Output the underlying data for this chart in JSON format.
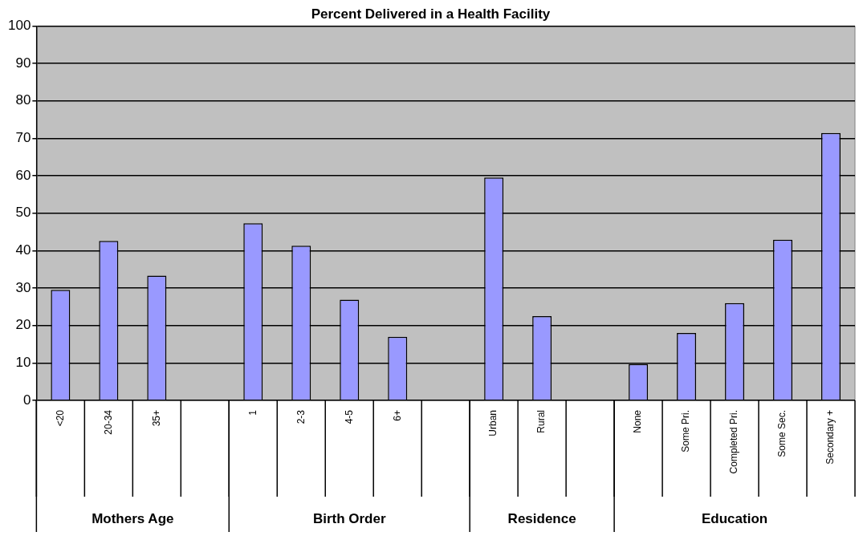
{
  "chart_data": {
    "type": "bar",
    "title": "Percent Delivered in a Health Facility",
    "categories": [
      "<20",
      "20-34",
      "35+",
      null,
      "1",
      "2-3",
      "4-5",
      "6+",
      null,
      "Urban",
      "Rural",
      null,
      "None",
      "Some Pri.",
      "Completed Pri.",
      "Some Sec.",
      "Secondary +"
    ],
    "values": [
      29.5,
      42.6,
      33.3,
      null,
      47.3,
      41.3,
      26.9,
      17.0,
      null,
      59.5,
      22.5,
      null,
      9.7,
      18.0,
      26.0,
      42.9,
      71.4
    ],
    "color": "#9999ff",
    "ylim": [
      0,
      100
    ],
    "yticks": [
      0,
      10,
      20,
      30,
      40,
      50,
      60,
      70,
      80,
      90,
      100
    ],
    "grid": "y",
    "legend": false,
    "annotations": [
      "Mothers Age",
      "Birth Order",
      "Residence",
      "Education"
    ]
  }
}
